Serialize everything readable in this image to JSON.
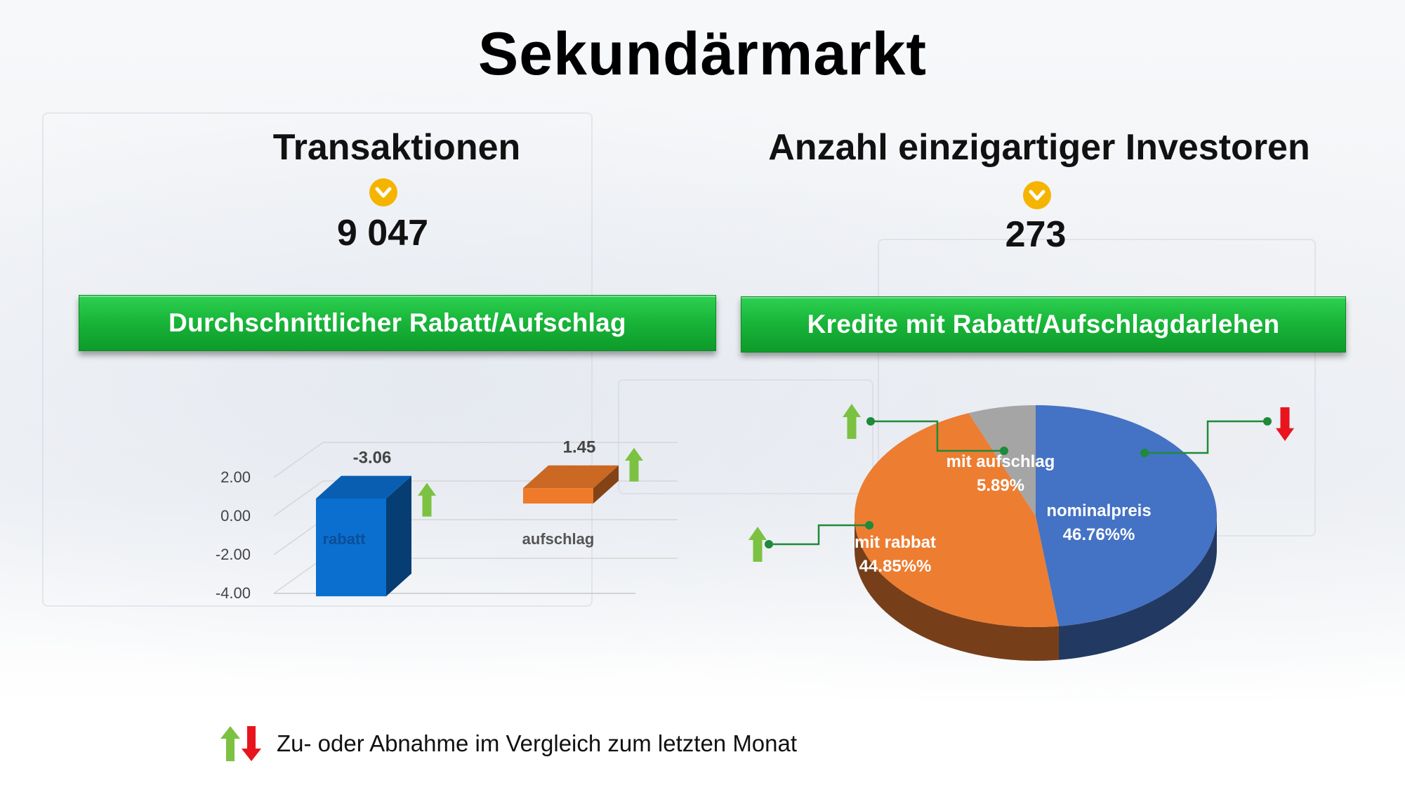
{
  "page": {
    "title": "Sekundärmarkt"
  },
  "kpis": [
    {
      "heading": "Transaktionen",
      "icon": "chevron-down-icon",
      "value": "9 047"
    },
    {
      "heading": "Anzahl einzigartiger Investoren",
      "icon": "chevron-down-icon",
      "value": "273"
    }
  ],
  "banners": {
    "left": "Durchschnittlicher Rabatt/Aufschlag",
    "right": "Kredite mit Rabatt/Aufschlagdarlehen"
  },
  "legend": {
    "text": "Zu- oder Abnahme im Vergleich zum letzten Monat",
    "icons": [
      "arrow-up-green-icon",
      "arrow-down-red-icon"
    ]
  },
  "colors": {
    "up": "#7cc242",
    "down": "#e8141e",
    "banner": "#19b63a",
    "accent": "#f5b400"
  },
  "chart_data": [
    {
      "type": "bar",
      "categories": [
        "rabatt",
        "aufschlag"
      ],
      "values": [
        -3.06,
        1.45
      ],
      "value_labels": [
        "-3.06",
        "1.45"
      ],
      "ylim": [
        -4,
        2
      ],
      "yticks": [
        "2.00",
        "0.00",
        "-2.00",
        "-4.00"
      ],
      "colors": [
        "#0b6fd0",
        "#ee7a2a"
      ],
      "trend": [
        "up",
        "up"
      ],
      "grid": true
    },
    {
      "type": "pie",
      "slices": [
        {
          "label": "nominalpreis",
          "value": 46.76,
          "value_label": "46.76%%",
          "color": "#4472c4",
          "trend": "down"
        },
        {
          "label": "mit rabbat",
          "value": 44.85,
          "value_label": "44.85%%",
          "color": "#ed7d31",
          "trend": "up"
        },
        {
          "label": "mit aufschlag",
          "value": 5.89,
          "value_label": "5.89%",
          "color": "#a5a5a5",
          "trend": "up"
        }
      ]
    }
  ]
}
